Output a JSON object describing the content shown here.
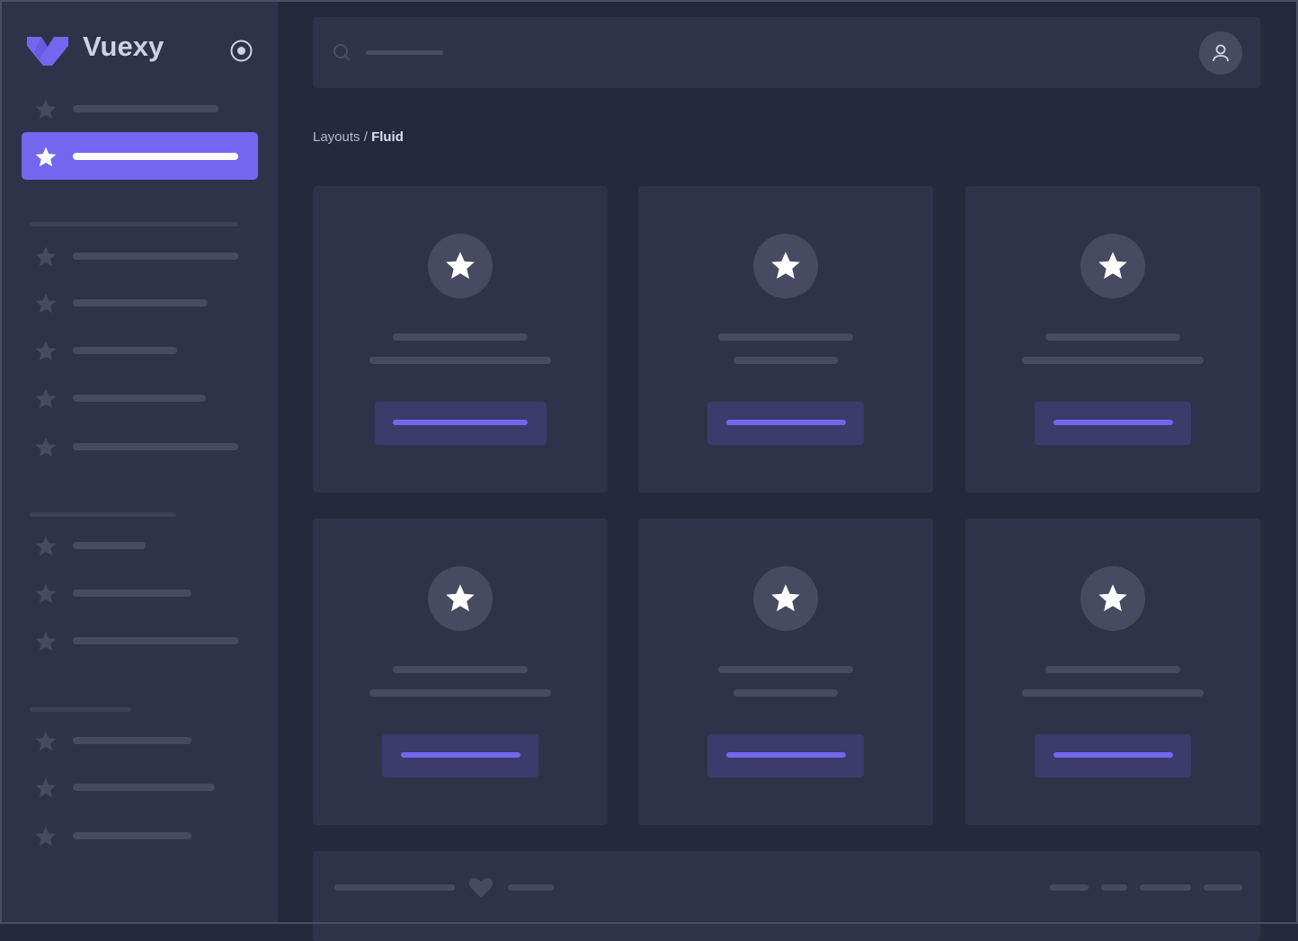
{
  "brand": {
    "name": "Vuexy",
    "logo_icon": "vuexy-logo-icon",
    "toggle_icon": "radio-circle-icon"
  },
  "header": {
    "search_icon": "search-icon",
    "user_icon": "user-icon"
  },
  "breadcrumb": {
    "parent": "Layouts",
    "separator": " / ",
    "current": "Fluid"
  },
  "sidebar": {
    "item_icon": "star-icon",
    "active_index": 1
  },
  "cards": {
    "count": 6,
    "icon": "star-icon"
  },
  "footer": {
    "icon": "heart-icon"
  },
  "colors": {
    "accent": "#7367f0",
    "sidebar": "#2f3349",
    "background": "#25293c",
    "placeholder": "#474a61",
    "button_bg": "#3d3b6b"
  }
}
